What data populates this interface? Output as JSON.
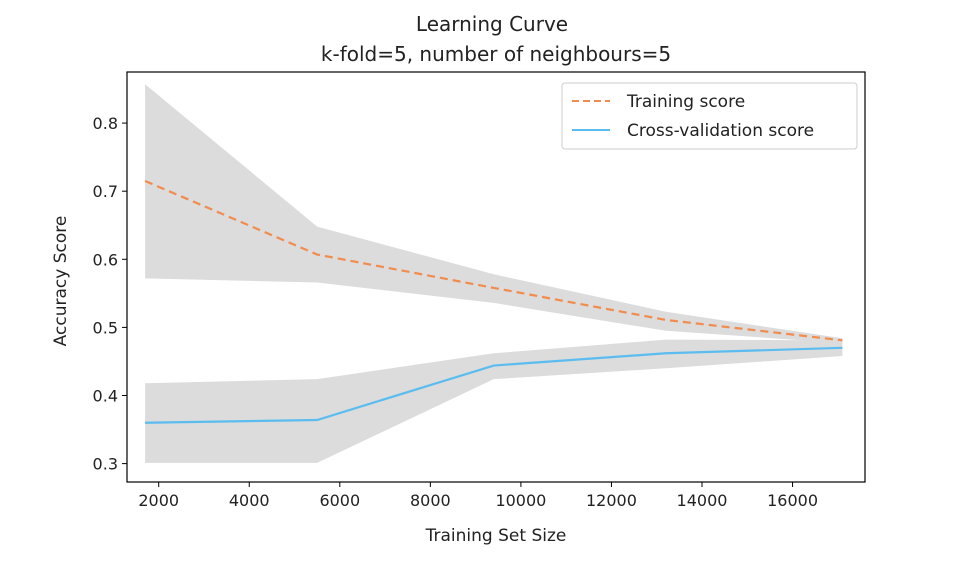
{
  "chart_data": {
    "type": "line",
    "title": "Learning Curve",
    "subtitle": "k-fold=5, number of neighbours=5",
    "xlabel": "Training Set Size",
    "ylabel": "Accuracy Score",
    "xlim": [
      1300,
      17600
    ],
    "ylim": [
      0.273,
      0.875
    ],
    "xticks": [
      2000,
      4000,
      6000,
      8000,
      10000,
      12000,
      14000,
      16000
    ],
    "yticks": [
      0.3,
      0.4,
      0.5,
      0.6,
      0.7,
      0.8
    ],
    "grid": false,
    "legend_position": "top-right",
    "x": [
      1700,
      5500,
      9400,
      13200,
      17100
    ],
    "series": [
      {
        "name": "Training score",
        "style": "dashed",
        "color": "#f28c4e",
        "values": [
          0.715,
          0.607,
          0.558,
          0.511,
          0.481
        ],
        "band_upper": [
          0.857,
          0.648,
          0.578,
          0.523,
          0.484
        ],
        "band_lower": [
          0.572,
          0.566,
          0.536,
          0.495,
          0.477
        ]
      },
      {
        "name": "Cross-validation score",
        "style": "solid",
        "color": "#5bbcf0",
        "values": [
          0.36,
          0.364,
          0.444,
          0.462,
          0.47
        ],
        "band_upper": [
          0.418,
          0.424,
          0.462,
          0.482,
          0.481
        ],
        "band_lower": [
          0.301,
          0.301,
          0.424,
          0.44,
          0.458
        ]
      }
    ],
    "band_color": "#dcdcdc"
  }
}
